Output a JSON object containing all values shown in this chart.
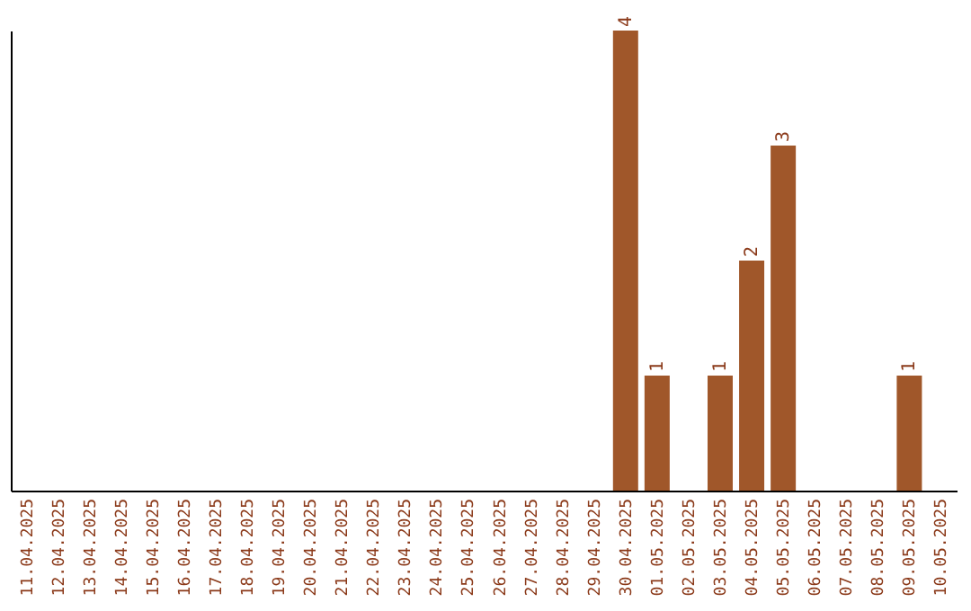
{
  "chart_data": {
    "type": "bar",
    "categories": [
      "11.04.2025",
      "12.04.2025",
      "13.04.2025",
      "14.04.2025",
      "15.04.2025",
      "16.04.2025",
      "17.04.2025",
      "18.04.2025",
      "19.04.2025",
      "20.04.2025",
      "21.04.2025",
      "22.04.2025",
      "23.04.2025",
      "24.04.2025",
      "25.04.2025",
      "26.04.2025",
      "27.04.2025",
      "28.04.2025",
      "29.04.2025",
      "30.04.2025",
      "01.05.2025",
      "02.05.2025",
      "03.05.2025",
      "04.05.2025",
      "05.05.2025",
      "06.05.2025",
      "07.05.2025",
      "08.05.2025",
      "09.05.2025",
      "10.05.2025"
    ],
    "values": [
      null,
      null,
      null,
      null,
      null,
      null,
      null,
      null,
      null,
      null,
      null,
      null,
      null,
      null,
      null,
      null,
      null,
      null,
      null,
      4,
      1,
      null,
      1,
      2,
      3,
      null,
      null,
      null,
      1,
      null
    ],
    "data_labels": true,
    "color": "#a0572a",
    "tick_labels": "x",
    "grid": false
  }
}
